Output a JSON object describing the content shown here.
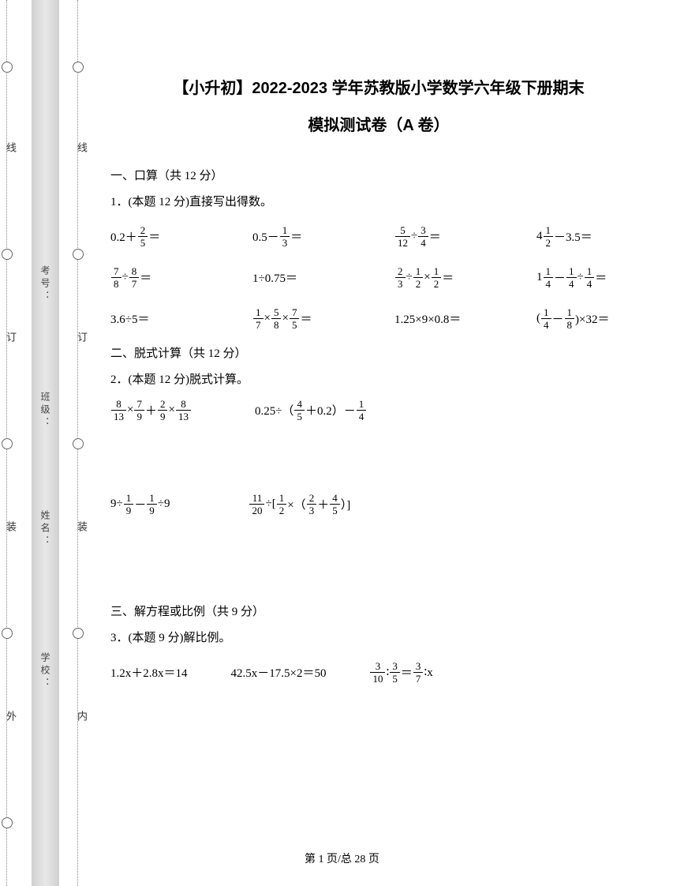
{
  "title_line1": "【小升初】2022-2023 学年苏教版小学数学六年级下册期末",
  "title_line2": "模拟测试卷（A 卷）",
  "binding": {
    "outer_labels": [
      "线",
      "订",
      "装",
      "外"
    ],
    "inner_labels": [
      "线",
      "订",
      "装",
      "内"
    ],
    "gray_labels": [
      "考号：",
      "班级：",
      "姓名：",
      "学校："
    ]
  },
  "section1": {
    "header": "一、口算（共 12 分）",
    "question_header": "1．(本题 12 分)直接写出得数。",
    "rows": [
      [
        {
          "type": "mixed",
          "text": "0.2＋",
          "frac": [
            "2",
            "5"
          ],
          "suffix": "＝"
        },
        {
          "type": "mixed",
          "text": "0.5－",
          "frac": [
            "1",
            "3"
          ],
          "suffix": "＝"
        },
        {
          "type": "fracfrac",
          "f1": [
            "5",
            "12"
          ],
          "op": "÷",
          "f2": [
            "3",
            "4"
          ],
          "suffix": "＝"
        },
        {
          "type": "mixnum",
          "whole": "4",
          "frac": [
            "1",
            "2"
          ],
          "op": "－3.5＝"
        }
      ],
      [
        {
          "type": "fracfrac",
          "f1": [
            "7",
            "8"
          ],
          "op": "÷",
          "f2": [
            "8",
            "7"
          ],
          "suffix": "＝"
        },
        {
          "type": "plain",
          "text": "1÷0.75＝"
        },
        {
          "type": "triple",
          "f1": [
            "2",
            "3"
          ],
          "op1": "÷",
          "f2": [
            "1",
            "2"
          ],
          "op2": "×",
          "f3": [
            "1",
            "2"
          ],
          "suffix": "＝"
        },
        {
          "type": "q14",
          "w1": "1",
          "f1": [
            "1",
            "4"
          ],
          "op1": "－",
          "f2": [
            "1",
            "4"
          ],
          "op2": "÷",
          "f3": [
            "1",
            "4"
          ],
          "suffix": "＝"
        }
      ],
      [
        {
          "type": "plain",
          "text": "3.6÷5＝"
        },
        {
          "type": "triple",
          "f1": [
            "1",
            "7"
          ],
          "op1": "×",
          "f2": [
            "5",
            "8"
          ],
          "op2": "×",
          "f3": [
            "7",
            "5"
          ],
          "suffix": "＝"
        },
        {
          "type": "plain",
          "text": "1.25×9×0.8＝"
        },
        {
          "type": "paren",
          "pre": "(",
          "f1": [
            "1",
            "4"
          ],
          "op": "－",
          "f2": [
            "1",
            "8"
          ],
          "post": ")×32＝"
        }
      ]
    ]
  },
  "section2": {
    "header": "二、脱式计算（共 12 分）",
    "question_header": "2．(本题 12 分)脱式计算。",
    "row1": [
      {
        "f1": [
          "8",
          "13"
        ],
        "op1": "×",
        "f2": [
          "7",
          "9"
        ],
        "op2": "＋",
        "f3": [
          "2",
          "9"
        ],
        "op3": "×",
        "f4": [
          "8",
          "13"
        ]
      },
      {
        "pre": "0.25÷（",
        "f1": [
          "4",
          "5"
        ],
        "mid": "＋0.2）－",
        "f2": [
          "1",
          "4"
        ]
      }
    ],
    "row2": [
      {
        "pre": "9÷",
        "f1": [
          "1",
          "9"
        ],
        "op": "－",
        "f2": [
          "1",
          "9"
        ],
        "post": "÷9"
      },
      {
        "f1": [
          "11",
          "20"
        ],
        "op1": "÷[",
        "f2": [
          "1",
          "2"
        ],
        "op2": "×（",
        "f3": [
          "2",
          "3"
        ],
        "op3": "＋",
        "f4": [
          "4",
          "5"
        ],
        "post": "）]"
      }
    ]
  },
  "section3": {
    "header": "三、解方程或比例（共 9 分）",
    "question_header": "3．(本题 9 分)解比例。",
    "equations": {
      "e1": "1.2x＋2.8x＝14",
      "e2": "42.5x－17.5×2＝50",
      "e3": {
        "f1": [
          "3",
          "10"
        ],
        "op1": "∶",
        "f2": [
          "3",
          "5"
        ],
        "op2": "＝",
        "f3": [
          "3",
          "7"
        ],
        "post": "∶x"
      }
    }
  },
  "footer": "第 1 页/总 28 页"
}
